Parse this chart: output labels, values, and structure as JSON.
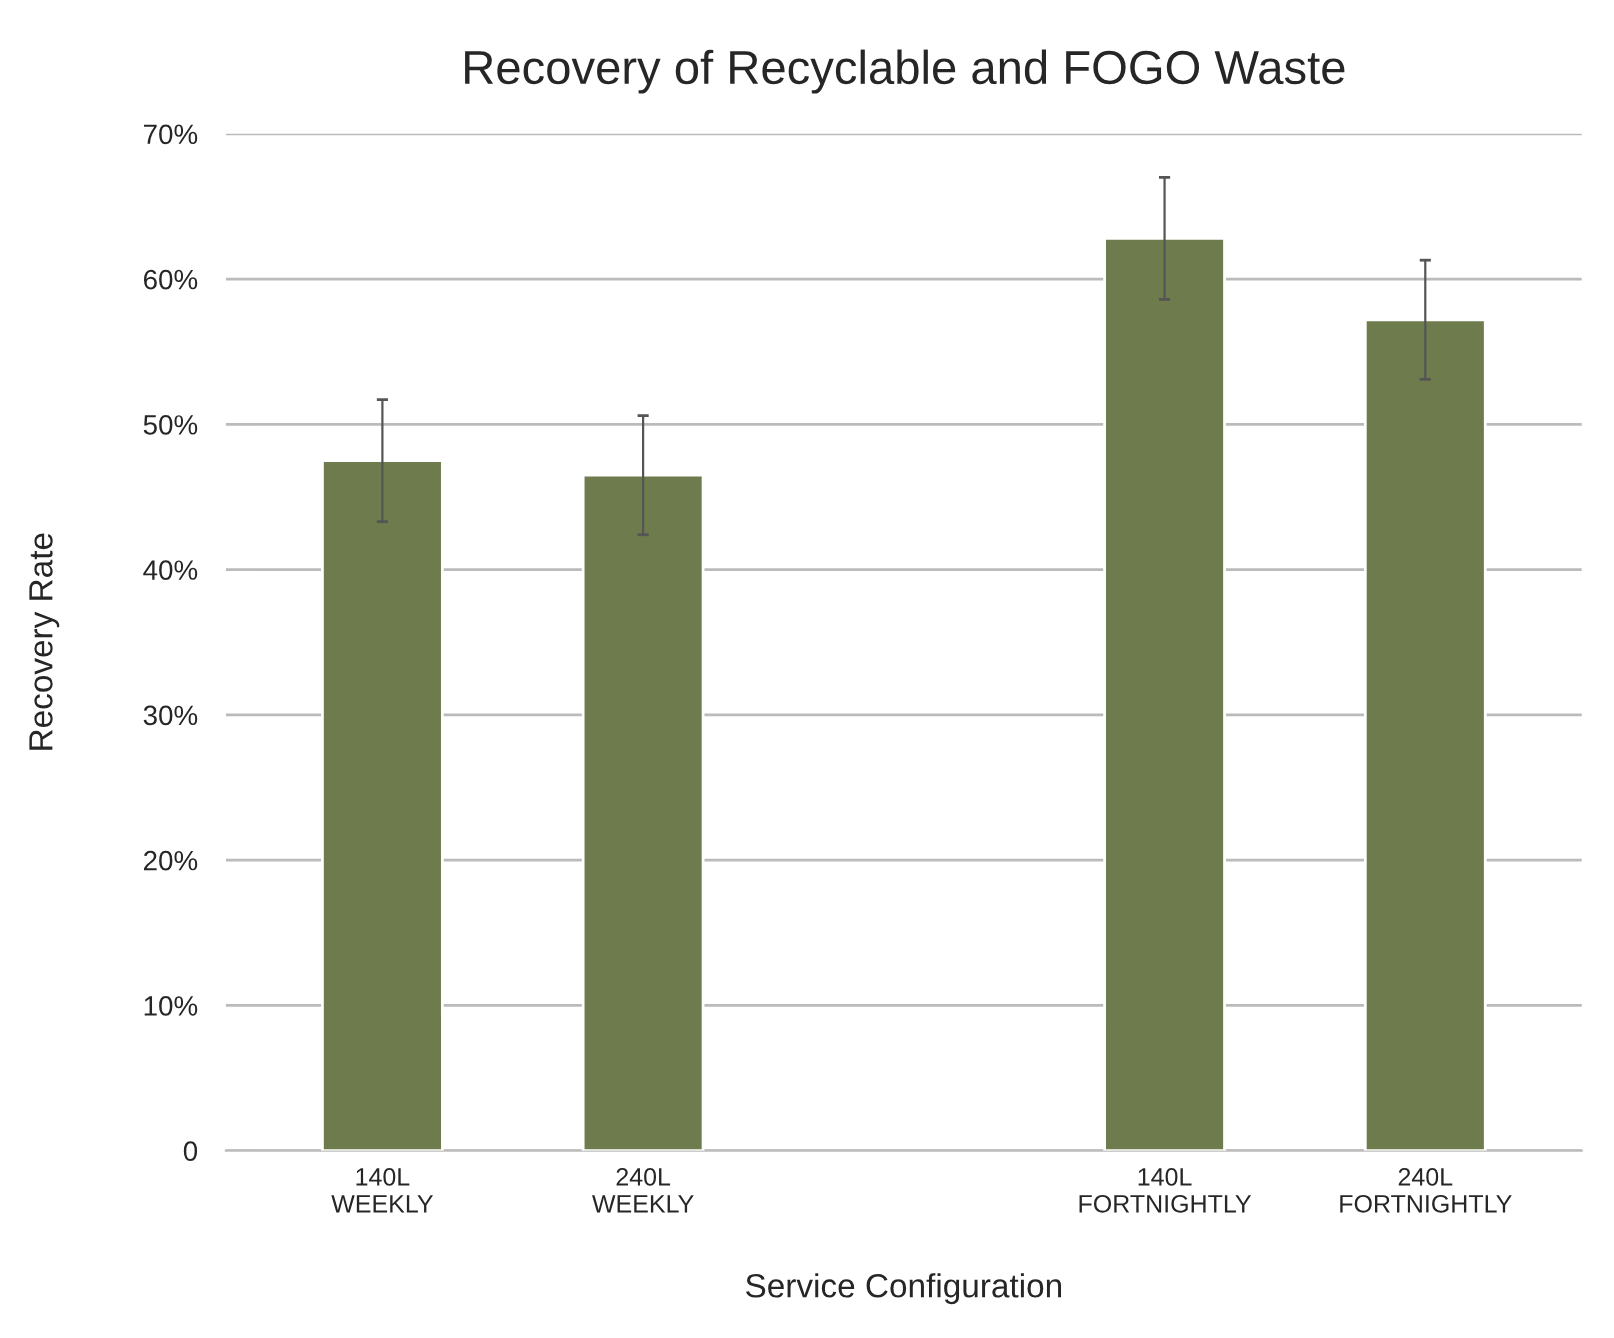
{
  "chart_data": {
    "type": "bar",
    "title": "Recovery of Recyclable and FOGO Waste",
    "xlabel": "Service Configuration",
    "ylabel": "Recovery Rate",
    "categories": [
      "140L\nWEEKLY",
      "240L\nWEEKLY",
      null,
      "140L\nFORTNIGHTLY",
      "240L\nFORTNIGHTLY"
    ],
    "values": [
      47.5,
      46.5,
      null,
      62.8,
      57.2
    ],
    "errors": [
      4.2,
      4.1,
      null,
      4.2,
      4.1
    ],
    "color": "#6e7b4c",
    "ylim": [
      0,
      70
    ],
    "yticks": [
      0,
      {
        "value": 10,
        "label": "10%"
      },
      {
        "value": 20,
        "label": "20%"
      },
      {
        "value": 30,
        "label": "30%"
      },
      {
        "value": 40,
        "label": "40%"
      },
      {
        "value": 50,
        "label": "50%"
      },
      {
        "value": 60,
        "label": "60%"
      },
      {
        "value": 70,
        "label": "70%"
      }
    ],
    "grid": "y"
  }
}
